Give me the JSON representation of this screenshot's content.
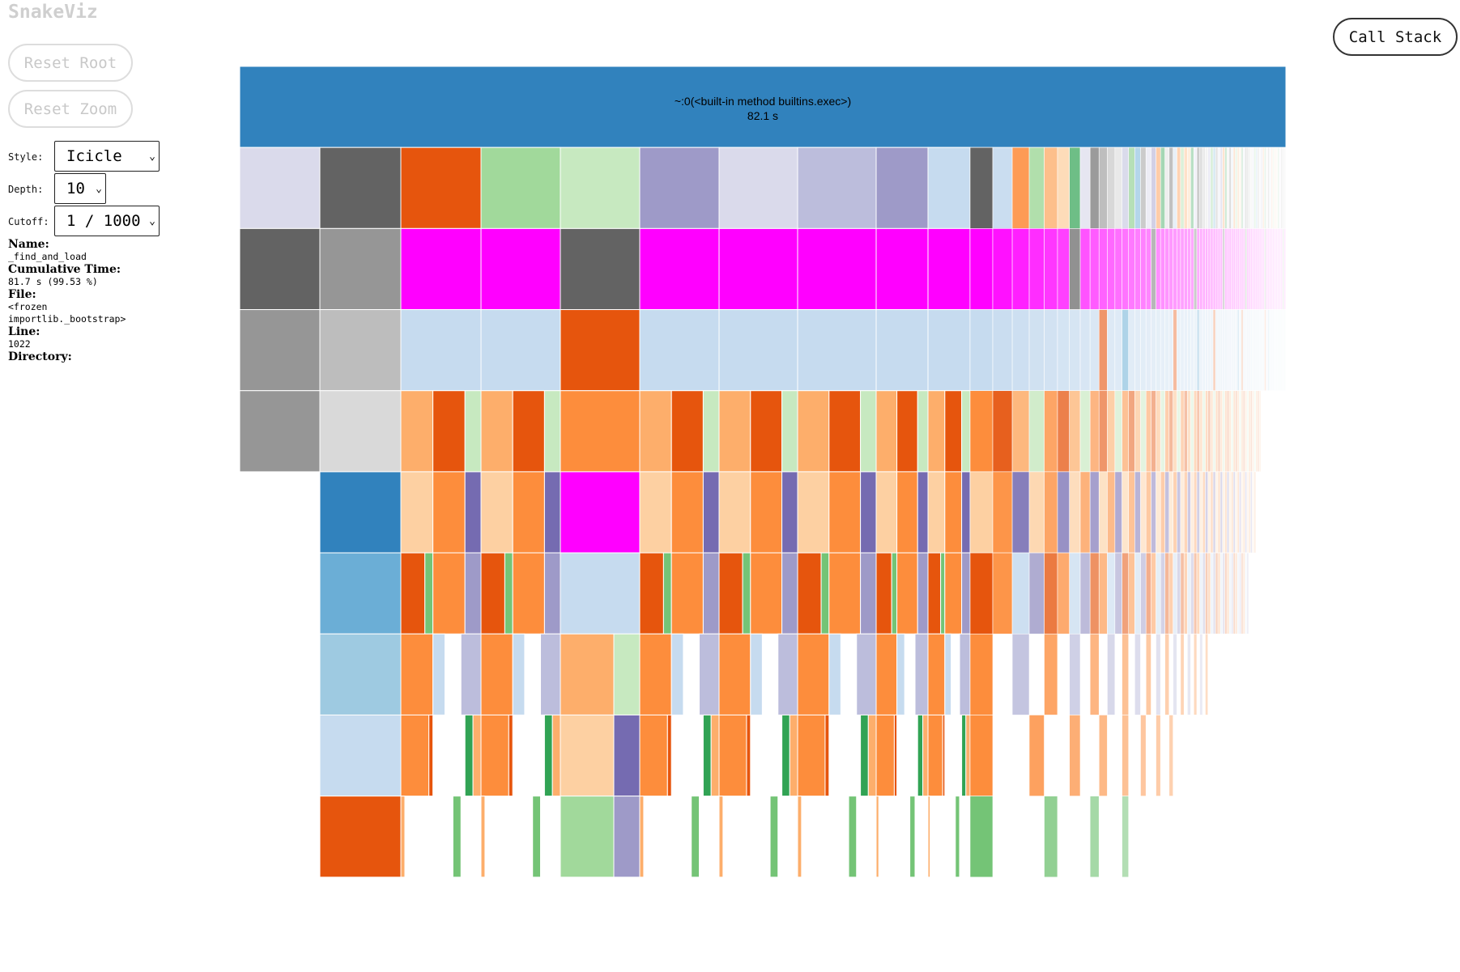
{
  "app": {
    "title": "SnakeViz"
  },
  "buttons": {
    "reset_root": "Reset Root",
    "reset_zoom": "Reset Zoom",
    "call_stack": "Call Stack"
  },
  "controls": {
    "style": {
      "label": "Style:",
      "value": "Icicle"
    },
    "depth": {
      "label": "Depth:",
      "value": "10"
    },
    "cutoff": {
      "label": "Cutoff:",
      "value": "1 / 1000"
    }
  },
  "info": {
    "name_label": "Name:",
    "name_value": "_find_and_load",
    "cumtime_label": "Cumulative Time:",
    "cumtime_value": "81.7 s (99.53 %)",
    "file_label": "File:",
    "file_value": "<frozen\nimportlib._bootstrap>",
    "line_label": "Line:",
    "line_value": "1022",
    "dir_label": "Directory:",
    "dir_value": ""
  },
  "icicle": {
    "root": {
      "label": "~:0(<built-in method builtins.exec>)",
      "time": "82.1 s",
      "color": "#3182bd"
    },
    "depth_levels": 10,
    "palette": {
      "blue": [
        "#3182bd",
        "#6baed6",
        "#9ecae1",
        "#c6dbef"
      ],
      "orange": [
        "#e6550d",
        "#fd8d3c",
        "#fdae6b",
        "#fdd0a2"
      ],
      "green": [
        "#31a354",
        "#74c476",
        "#a1d99b",
        "#c7e9c0"
      ],
      "purple": [
        "#756bb1",
        "#9e9ac8",
        "#bcbddc",
        "#dadaeb"
      ],
      "gray": [
        "#636363",
        "#969696",
        "#bdbdbd",
        "#d9d9d9"
      ],
      "highlight": "#ff00ff"
    }
  }
}
